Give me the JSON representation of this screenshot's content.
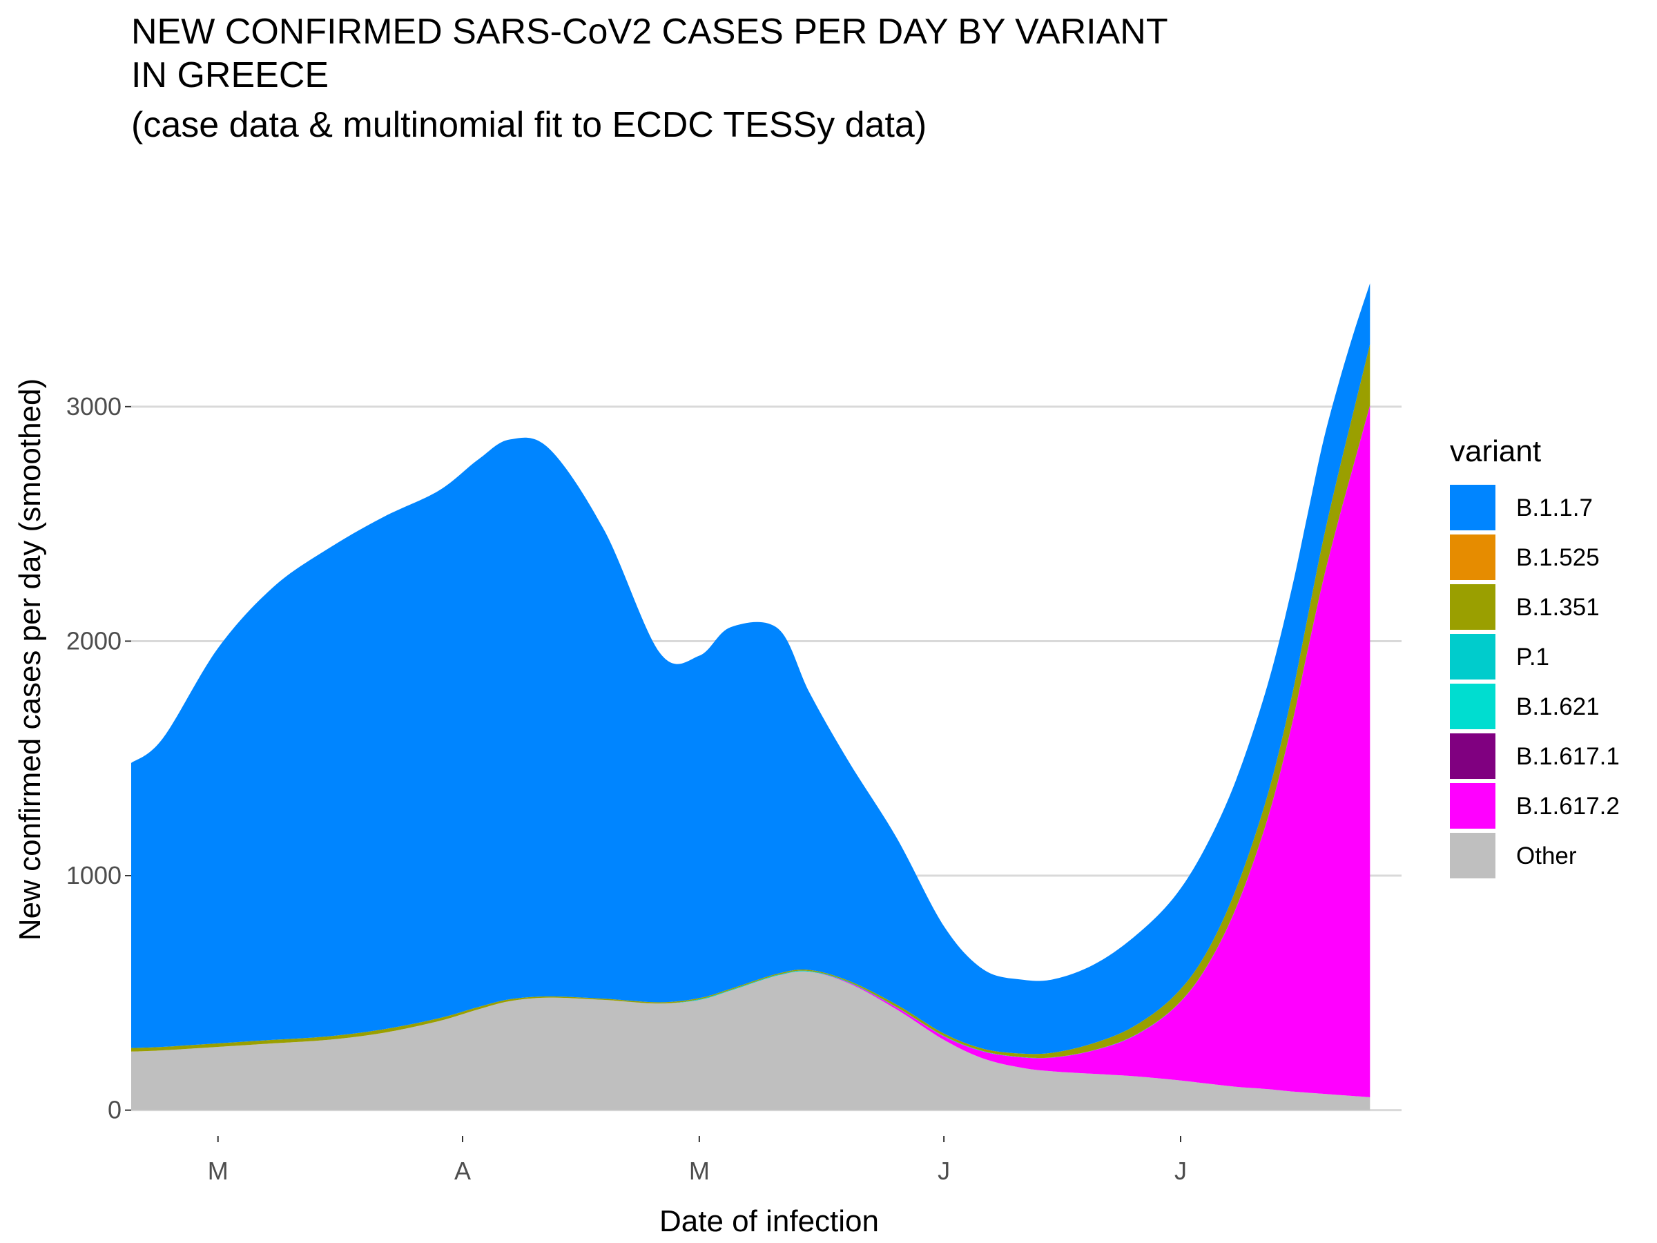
{
  "chart_data": {
    "type": "area",
    "stacked": true,
    "title_lines": [
      "NEW CONFIRMED SARS-CoV2 CASES PER DAY BY VARIANT",
      "IN GREECE",
      "(case data & multinomial fit to ECDC TESSy data)"
    ],
    "xlabel": "Date of infection",
    "ylabel": "New confirmed cases per day (smoothed)",
    "x_ticks": [
      {
        "label": "M",
        "date": "2021-03-01"
      },
      {
        "label": "A",
        "date": "2021-04-01"
      },
      {
        "label": "M",
        "date": "2021-05-01"
      },
      {
        "label": "J",
        "date": "2021-06-01"
      },
      {
        "label": "J",
        "date": "2021-07-01"
      }
    ],
    "xlim": [
      "2021-02-18",
      "2021-07-29"
    ],
    "y_ticks": [
      0,
      1000,
      2000,
      3000
    ],
    "ylim": [
      -110,
      3880
    ],
    "grid": true,
    "legend": {
      "title": "variant",
      "placement": "right",
      "entries": [
        {
          "name": "B.1.1.7",
          "color": "#0085FF"
        },
        {
          "name": "B.1.525",
          "color": "#E68C00"
        },
        {
          "name": "B.1.351",
          "color": "#9A9F00"
        },
        {
          "name": "P.1",
          "color": "#00CCCC"
        },
        {
          "name": "B.1.621",
          "color": "#00DDD0"
        },
        {
          "name": "B.1.617.1",
          "color": "#800080"
        },
        {
          "name": "B.1.617.2",
          "color": "#FF00FF"
        },
        {
          "name": "Other",
          "color": "#BFBFBF"
        }
      ]
    },
    "dates": [
      "2021-02-18",
      "2021-02-22",
      "2021-03-01",
      "2021-03-08",
      "2021-03-15",
      "2021-03-22",
      "2021-03-29",
      "2021-04-03",
      "2021-04-07",
      "2021-04-12",
      "2021-04-19",
      "2021-04-26",
      "2021-05-01",
      "2021-05-05",
      "2021-05-11",
      "2021-05-15",
      "2021-05-20",
      "2021-05-26",
      "2021-06-01",
      "2021-06-06",
      "2021-06-11",
      "2021-06-15",
      "2021-06-20",
      "2021-06-25",
      "2021-06-30",
      "2021-07-04",
      "2021-07-08",
      "2021-07-12",
      "2021-07-15",
      "2021-07-17",
      "2021-07-19",
      "2021-07-21",
      "2021-07-23",
      "2021-07-25"
    ],
    "series": [
      {
        "name": "Other",
        "color": "#BFBFBF",
        "values": [
          250,
          255,
          270,
          285,
          300,
          330,
          380,
          430,
          465,
          480,
          470,
          455,
          470,
          510,
          575,
          590,
          540,
          430,
          300,
          220,
          180,
          165,
          155,
          145,
          130,
          115,
          100,
          90,
          80,
          75,
          70,
          65,
          60,
          55
        ]
      },
      {
        "name": "B.1.617.2",
        "color": "#FF00FF",
        "values": [
          0,
          0,
          0,
          0,
          0,
          0,
          0,
          0,
          0,
          0,
          0,
          0,
          0,
          0,
          0,
          0,
          3,
          8,
          15,
          30,
          45,
          60,
          100,
          170,
          300,
          480,
          760,
          1150,
          1550,
          1870,
          2180,
          2450,
          2700,
          2950
        ]
      },
      {
        "name": "B.1.617.1",
        "color": "#800080",
        "values": [
          0,
          0,
          0,
          0,
          0,
          0,
          0,
          0,
          0,
          0,
          0,
          0,
          0,
          0,
          0,
          0,
          0,
          0,
          0,
          0,
          0,
          0,
          0,
          0,
          0,
          0,
          0,
          0,
          0,
          0,
          0,
          0,
          0,
          0
        ]
      },
      {
        "name": "B.1.621",
        "color": "#00DDD0",
        "values": [
          0,
          0,
          0,
          0,
          0,
          0,
          0,
          0,
          0,
          0,
          0,
          0,
          0,
          0,
          0,
          0,
          0,
          0,
          0,
          0,
          0,
          0,
          0,
          0,
          0,
          0,
          0,
          0,
          0,
          0,
          0,
          0,
          0,
          0
        ]
      },
      {
        "name": "P.1",
        "color": "#00CCCC",
        "values": [
          0,
          0,
          0,
          0,
          0,
          0,
          0,
          0,
          0,
          0,
          0,
          0,
          3,
          3,
          3,
          3,
          3,
          2,
          2,
          2,
          1,
          1,
          1,
          1,
          1,
          1,
          1,
          1,
          1,
          1,
          1,
          1,
          1,
          1
        ]
      },
      {
        "name": "B.1.351",
        "color": "#9A9F00",
        "values": [
          15,
          15,
          15,
          15,
          15,
          15,
          12,
          10,
          8,
          5,
          5,
          5,
          5,
          5,
          5,
          5,
          5,
          10,
          10,
          10,
          15,
          20,
          30,
          40,
          50,
          60,
          80,
          100,
          120,
          140,
          170,
          200,
          230,
          260
        ]
      },
      {
        "name": "B.1.525",
        "color": "#E68C00",
        "values": [
          0,
          0,
          0,
          0,
          0,
          0,
          0,
          0,
          0,
          0,
          0,
          0,
          0,
          0,
          0,
          0,
          0,
          0,
          0,
          0,
          0,
          0,
          0,
          0,
          0,
          0,
          0,
          0,
          0,
          0,
          0,
          0,
          0,
          0
        ]
      },
      {
        "name": "B.1.1.7",
        "color": "#0085FF",
        "values": [
          1215,
          1315,
          1685,
          1930,
          2080,
          2185,
          2250,
          2335,
          2387,
          2335,
          1995,
          1490,
          1460,
          1542,
          1470,
          1180,
          932,
          712,
          458,
          338,
          315,
          313,
          335,
          380,
          420,
          455,
          465,
          470,
          460,
          440,
          420,
          380,
          330,
          260
        ]
      }
    ]
  }
}
